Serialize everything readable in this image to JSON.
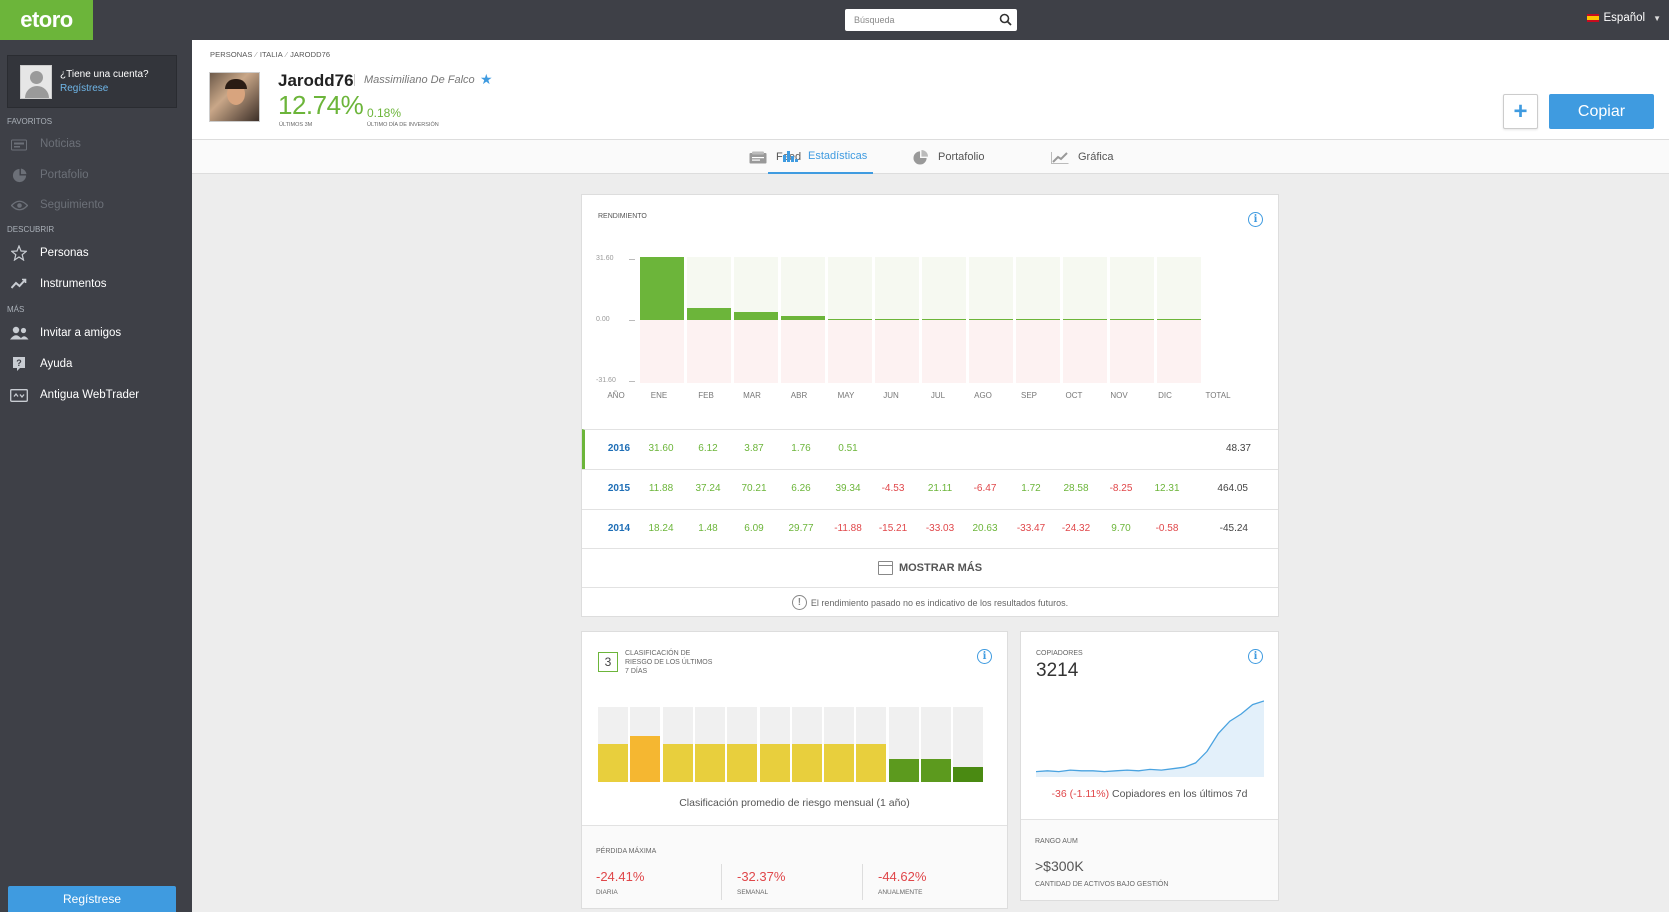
{
  "app": {
    "logo": "etoro"
  },
  "sidebar": {
    "account_question": "¿Tiene una cuenta?",
    "account_register": "Regístrese",
    "sections": [
      "Favoritos",
      "Descubrir",
      "Más"
    ],
    "items": [
      {
        "label": "Noticias",
        "icon": "newspaper-icon"
      },
      {
        "label": "Portafolio",
        "icon": "pie-chart-icon"
      },
      {
        "label": "Seguimiento",
        "icon": "eye-icon"
      },
      {
        "label": "Personas",
        "icon": "star-icon"
      },
      {
        "label": "Instrumentos",
        "icon": "trend-icon"
      },
      {
        "label": "Invitar a amigos",
        "icon": "add-user-icon"
      },
      {
        "label": "Ayuda",
        "icon": "help-icon"
      },
      {
        "label": "Antigua WebTrader",
        "icon": "webtrader-icon"
      }
    ],
    "register_button": "Regístrese"
  },
  "topbar": {
    "search_placeholder": "Búsqueda",
    "language": "Español"
  },
  "profile": {
    "breadcrumb": [
      "Personas",
      "Italia",
      "Jarodd76"
    ],
    "username": "Jarodd76",
    "real_name": "Massimiliano De Falco",
    "gain_3m": "12.74%",
    "gain_3m_label": "Últimos 3M",
    "gain_day": "0.18%",
    "gain_day_label": "Último día de inversión",
    "add_label": "+",
    "copy_label": "Copiar"
  },
  "tabs": [
    {
      "label": "Feed",
      "icon": "feed-icon"
    },
    {
      "label": "Estadísticas",
      "icon": "bar-chart-icon"
    },
    {
      "label": "Portafolio",
      "icon": "pie-chart-icon"
    },
    {
      "label": "Gráfica",
      "icon": "line-chart-icon"
    }
  ],
  "performance": {
    "title": "Rendimiento",
    "y_labels": [
      "31.60",
      "0.00",
      "-31.60"
    ],
    "header": [
      "Año",
      "Ene",
      "Feb",
      "Mar",
      "Abr",
      "May",
      "Jun",
      "Jul",
      "Ago",
      "Sep",
      "Oct",
      "Nov",
      "Dic",
      "Total"
    ],
    "rows": [
      {
        "year": "2016",
        "values": [
          "31.60",
          "6.12",
          "3.87",
          "1.76",
          "0.51",
          "",
          "",
          "",
          "",
          "",
          "",
          ""
        ],
        "total": "48.37"
      },
      {
        "year": "2015",
        "values": [
          "11.88",
          "37.24",
          "70.21",
          "6.26",
          "39.34",
          "-4.53",
          "21.11",
          "-6.47",
          "1.72",
          "28.58",
          "-8.25",
          "12.31"
        ],
        "total": "464.05"
      },
      {
        "year": "2014",
        "values": [
          "18.24",
          "1.48",
          "6.09",
          "29.77",
          "-11.88",
          "-15.21",
          "-33.03",
          "20.63",
          "-33.47",
          "-24.32",
          "9.70",
          "-0.58"
        ],
        "total": "-45.24"
      }
    ],
    "show_more": "Mostrar más",
    "disclaimer": "El rendimiento pasado no es indicativo de los resultados futuros."
  },
  "chart_data": {
    "type": "bar",
    "categories": [
      "Ene",
      "Feb",
      "Mar",
      "Abr",
      "May",
      "Jun",
      "Jul",
      "Ago",
      "Sep",
      "Oct",
      "Nov",
      "Dic"
    ],
    "values": [
      31.6,
      6.12,
      3.87,
      1.76,
      0.51,
      0,
      0,
      0,
      0,
      0,
      0,
      0
    ],
    "ylim": [
      -31.6,
      31.6
    ],
    "xlabel": "",
    "ylabel": "",
    "colors": {
      "positive": "#6cb53a",
      "pos_bg": "#f6f9f1",
      "neg_bg": "#fdf2f2"
    }
  },
  "risk": {
    "score": "3",
    "title": "Clasificación de riesgo de los últimos 7 días",
    "monthly_levels": [
      5,
      6,
      5,
      5,
      5,
      5,
      5,
      5,
      5,
      3,
      3,
      2
    ],
    "colors": {
      "yellow": "#e8cf3d",
      "orange": "#f5b731",
      "green": "#5c9a1e",
      "dark_green": "#4a8a12"
    },
    "caption": "Clasificación promedio de riesgo mensual (1 año)",
    "max_loss_title": "Pérdida máxima",
    "max_loss": [
      {
        "value": "-24.41%",
        "label": "Diaria"
      },
      {
        "value": "-32.37%",
        "label": "Semanal"
      },
      {
        "value": "-44.62%",
        "label": "Anualmente"
      }
    ]
  },
  "copiers": {
    "title": "Copiadores",
    "count": "3214",
    "change_value": "-36 (-1.11%)",
    "change_text": "Copiadores en los últimos 7d",
    "trend": [
      0.02,
      0.03,
      0.02,
      0.04,
      0.03,
      0.03,
      0.02,
      0.03,
      0.04,
      0.03,
      0.05,
      0.04,
      0.06,
      0.08,
      0.14,
      0.3,
      0.55,
      0.72,
      0.82,
      0.95,
      1.0
    ],
    "aum_title": "Rango AUM",
    "aum_value": ">$300K",
    "aum_label": "Cantidad de activos bajo gestión"
  }
}
